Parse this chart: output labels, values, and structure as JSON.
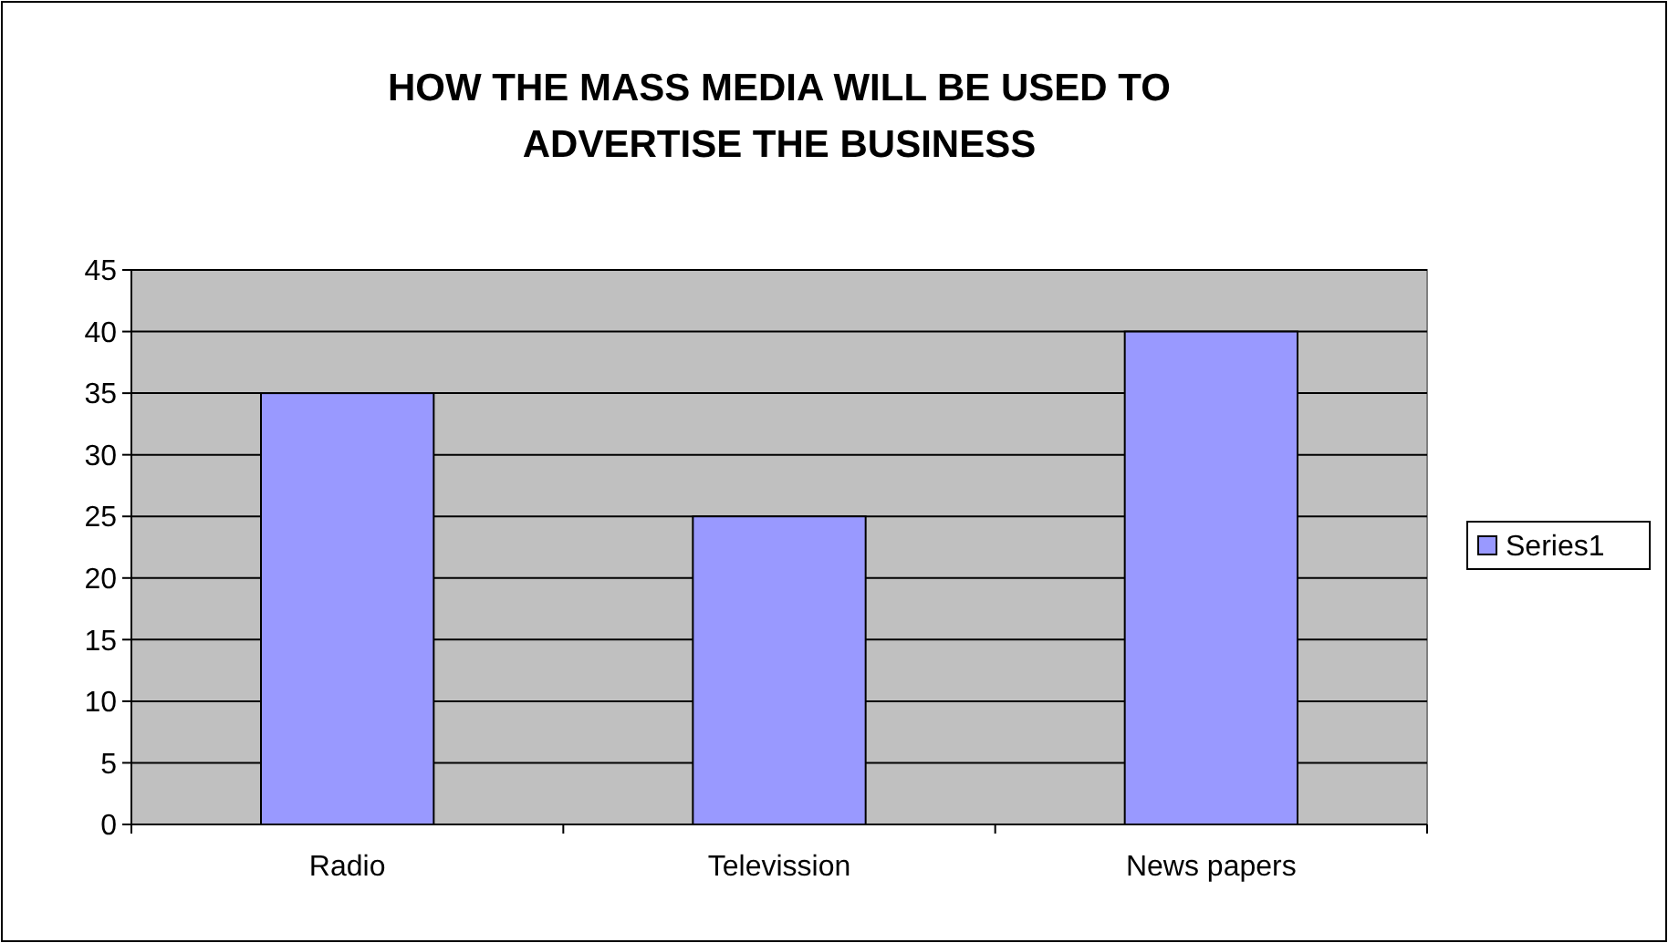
{
  "chart_data": {
    "type": "bar",
    "title": "HOW THE MASS MEDIA WILL BE USED TO ADVERTISE THE BUSINESS",
    "categories": [
      "Radio",
      "Televission",
      "News papers"
    ],
    "series": [
      {
        "name": "Series1",
        "color": "#9999ff",
        "values": [
          35,
          25,
          40
        ]
      }
    ],
    "ylim": [
      0,
      45
    ],
    "yticks": [
      0,
      5,
      10,
      15,
      20,
      25,
      30,
      35,
      40,
      45
    ],
    "grid": "y",
    "legend": "right"
  }
}
